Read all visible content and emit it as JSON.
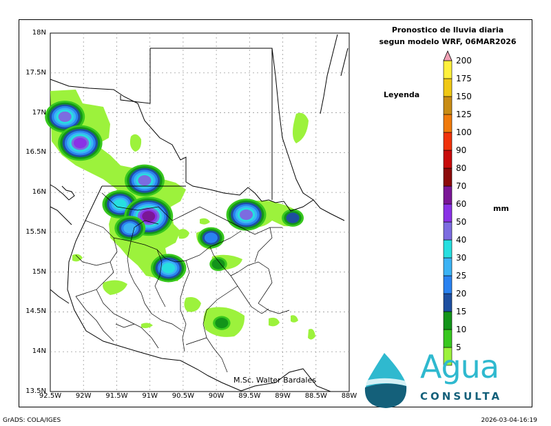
{
  "title": {
    "line1": "Pronostico de lluvia diaria",
    "line2": "segun modelo WRF,  06MAR2026"
  },
  "legend": {
    "title": "Leyenda",
    "units": "mm",
    "bins": [
      {
        "label": "5",
        "color": "#9cf23c"
      },
      {
        "label": "10",
        "color": "#38c81e"
      },
      {
        "label": "15",
        "color": "#13941a"
      },
      {
        "label": "20",
        "color": "#1e4fa0"
      },
      {
        "label": "25",
        "color": "#2a82f0"
      },
      {
        "label": "30",
        "color": "#3cb3f4"
      },
      {
        "label": "40",
        "color": "#27dfe0"
      },
      {
        "label": "50",
        "color": "#7c6ce0"
      },
      {
        "label": "60",
        "color": "#8a32e6"
      },
      {
        "label": "70",
        "color": "#7a1696"
      },
      {
        "label": "80",
        "color": "#8c0a0a"
      },
      {
        "label": "90",
        "color": "#c80a0a"
      },
      {
        "label": "100",
        "color": "#f0320a"
      },
      {
        "label": "125",
        "color": "#f07a0a"
      },
      {
        "label": "150",
        "color": "#c88c14"
      },
      {
        "label": "175",
        "color": "#f0c814"
      },
      {
        "label": "200",
        "color": "#fff03c"
      }
    ],
    "overflow_color": "#f0a0b4"
  },
  "axes": {
    "lat_ticks": [
      "18N",
      "17.5N",
      "17N",
      "16.5N",
      "16N",
      "15.5N",
      "15N",
      "14.5N",
      "14N",
      "13.5N"
    ],
    "lon_ticks": [
      "92.5W",
      "92W",
      "91.5W",
      "91W",
      "90.5W",
      "90W",
      "89.5W",
      "89W",
      "88.5W",
      "88W"
    ],
    "lat_range": [
      13.5,
      18
    ],
    "lon_range": [
      -92.5,
      -88
    ]
  },
  "rain_cells": [
    {
      "lon": -92.28,
      "lat": 16.95,
      "mm": 50
    },
    {
      "lon": -92.05,
      "lat": 16.62,
      "mm": 60
    },
    {
      "lon": -91.08,
      "lat": 16.15,
      "mm": 50
    },
    {
      "lon": -91.45,
      "lat": 15.85,
      "mm": 40
    },
    {
      "lon": -91.02,
      "lat": 15.7,
      "mm": 70
    },
    {
      "lon": -91.3,
      "lat": 15.55,
      "mm": 30
    },
    {
      "lon": -90.72,
      "lat": 15.05,
      "mm": 40
    },
    {
      "lon": -90.08,
      "lat": 15.43,
      "mm": 25
    },
    {
      "lon": -89.55,
      "lat": 15.72,
      "mm": 50
    },
    {
      "lon": -88.85,
      "lat": 15.68,
      "mm": 20
    },
    {
      "lon": -89.97,
      "lat": 15.1,
      "mm": 15
    },
    {
      "lon": -89.92,
      "lat": 14.36,
      "mm": 15
    }
  ],
  "author": "M.Sc. Walter Bardales",
  "footer": {
    "left": "GrADS: COLA/IGES",
    "right": "2026-03-04-16:19"
  },
  "logo": {
    "word": "Agua",
    "sub": "CONSULTA"
  }
}
